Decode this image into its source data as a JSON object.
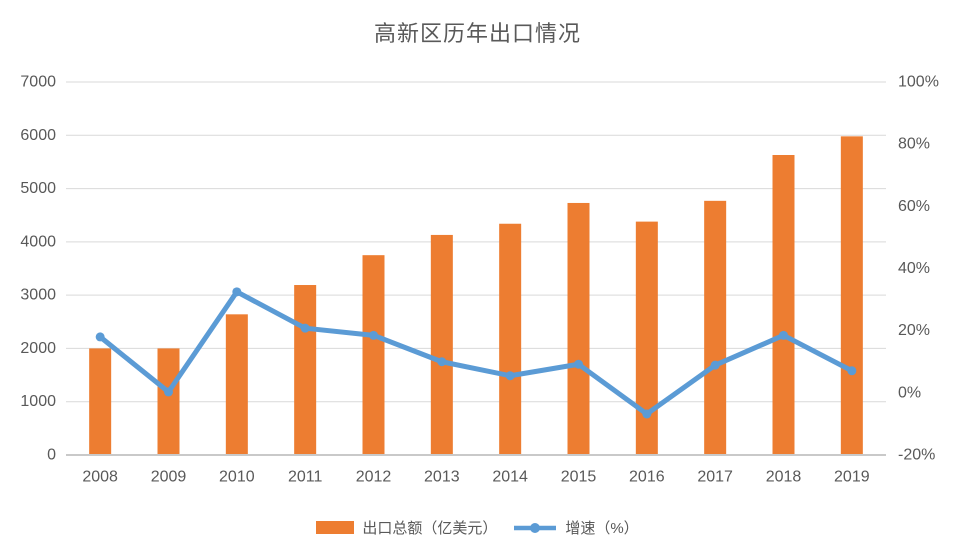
{
  "title": "高新区历年出口情况",
  "colors": {
    "bar": "#ED7D31",
    "line": "#5B9BD5",
    "grid": "#D9D9D9",
    "axis_line": "#C9C9C9",
    "text": "#595959",
    "title_text": "#595959",
    "background": "#FFFFFF"
  },
  "legend": {
    "bar_label": "出口总额（亿美元）",
    "line_label": "增速（%）"
  },
  "chart_data": {
    "type": "bar+line combo",
    "title": "高新区历年出口情况",
    "categories": [
      "2008",
      "2009",
      "2010",
      "2011",
      "2012",
      "2013",
      "2014",
      "2015",
      "2016",
      "2017",
      "2018",
      "2019"
    ],
    "series": [
      {
        "name": "出口总额（亿美元）",
        "type": "bar",
        "axis": "left",
        "color": "#ED7D31",
        "values": [
          2000,
          2000,
          2640,
          3190,
          3750,
          4130,
          4340,
          4730,
          4380,
          4770,
          5630,
          5980
        ]
      },
      {
        "name": "增速（%）",
        "type": "line",
        "axis": "right",
        "color": "#5B9BD5",
        "values": [
          18.0,
          0.3,
          32.5,
          20.8,
          18.5,
          10.0,
          5.5,
          9.2,
          -6.8,
          8.9,
          18.5,
          7.1
        ]
      }
    ],
    "left_axis": {
      "min": 0,
      "max": 7000,
      "step": 1000,
      "ticks": [
        "0",
        "1000",
        "2000",
        "3000",
        "4000",
        "5000",
        "6000",
        "7000"
      ]
    },
    "right_axis": {
      "min": -20,
      "max": 100,
      "step": 20,
      "ticks": [
        "-20%",
        "0%",
        "20%",
        "40%",
        "60%",
        "80%",
        "100%"
      ]
    },
    "grid": true,
    "legend_position": "bottom"
  }
}
